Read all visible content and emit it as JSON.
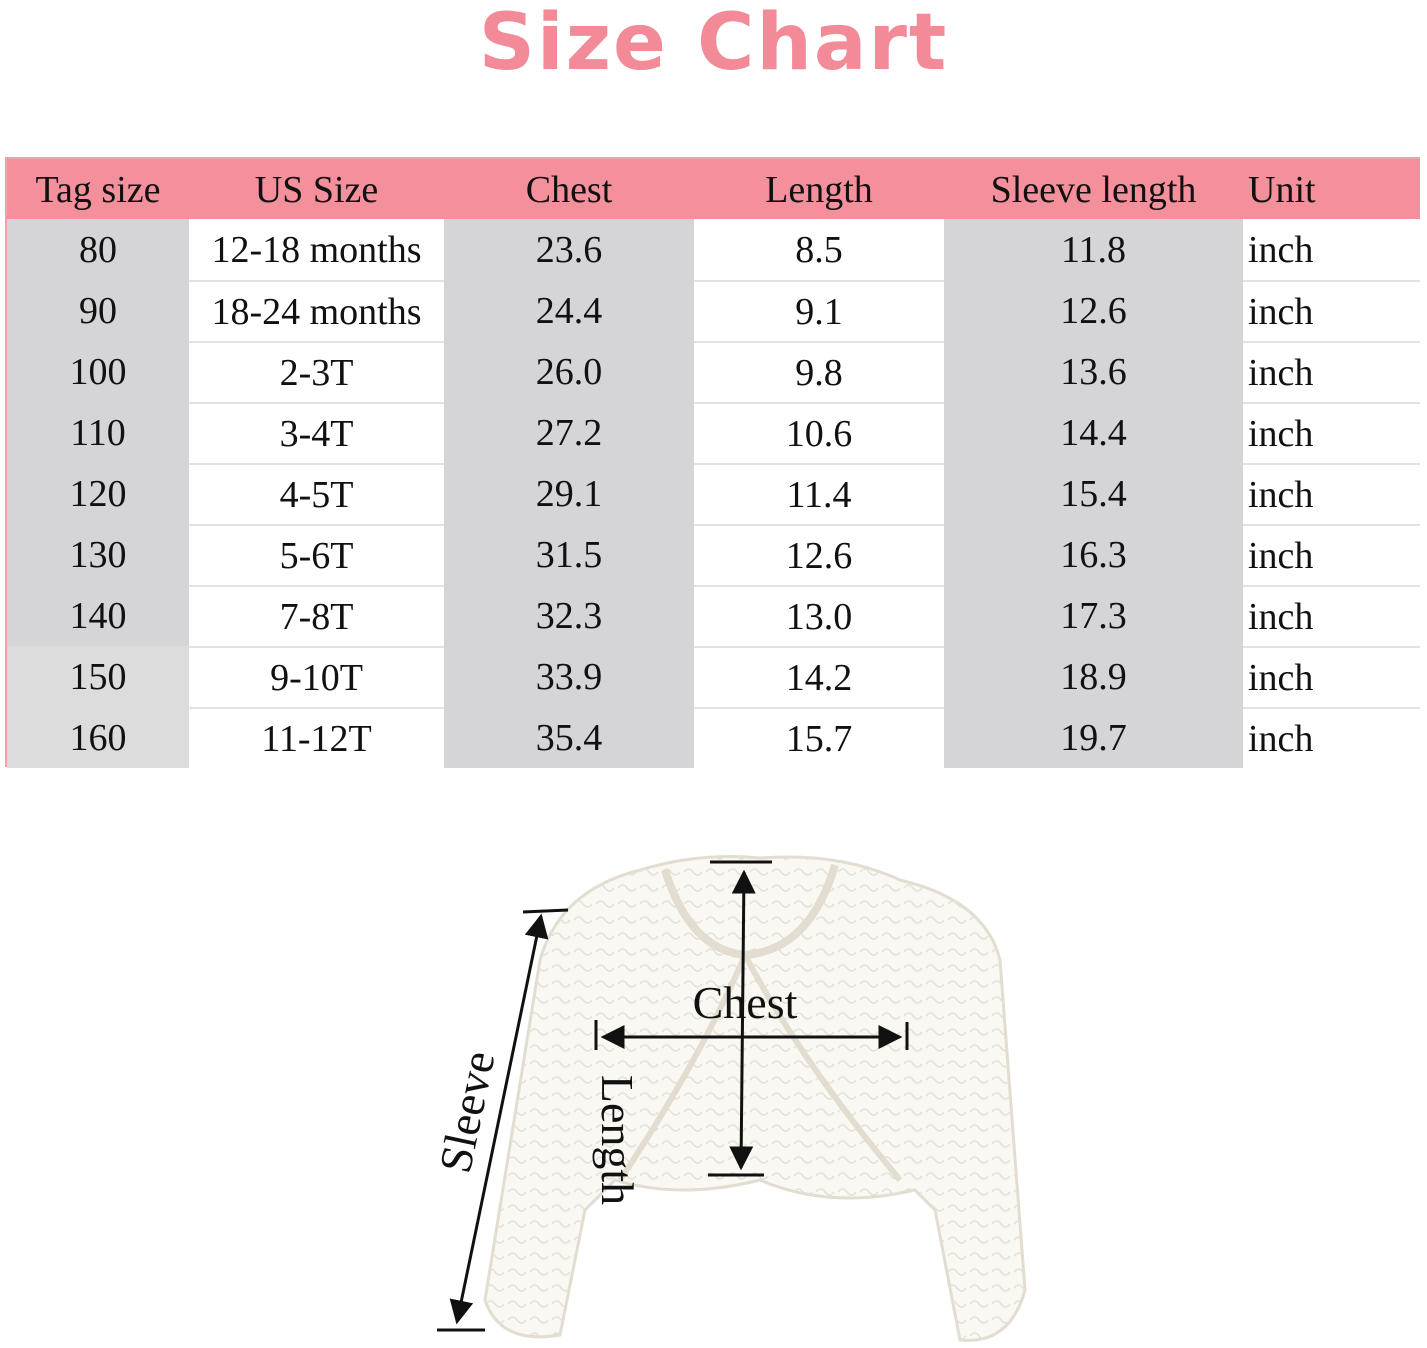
{
  "title": "Size Chart",
  "table": {
    "header": [
      "Tag size",
      "US Size",
      "Chest",
      "Length",
      "Sleeve length",
      "Unit"
    ],
    "rows": [
      [
        "80",
        "12-18 months",
        "23.6",
        "8.5",
        "11.8",
        "inch"
      ],
      [
        "90",
        "18-24 months",
        "24.4",
        "9.1",
        "12.6",
        "inch"
      ],
      [
        "100",
        "2-3T",
        "26.0",
        "9.8",
        "13.6",
        "inch"
      ],
      [
        "110",
        "3-4T",
        "27.2",
        "10.6",
        "14.4",
        "inch"
      ],
      [
        "120",
        "4-5T",
        "29.1",
        "11.4",
        "15.4",
        "inch"
      ],
      [
        "130",
        "5-6T",
        "31.5",
        "12.6",
        "16.3",
        "inch"
      ],
      [
        "140",
        "7-8T",
        "32.3",
        "13.0",
        "17.3",
        "inch"
      ],
      [
        "150",
        "9-10T",
        "33.9",
        "14.2",
        "18.9",
        "inch"
      ],
      [
        "160",
        "11-12T",
        "35.4",
        "15.7",
        "19.7",
        "inch"
      ]
    ]
  },
  "diagram": {
    "chest": "Chest",
    "length": "Length",
    "sleeve": "Sleeve"
  }
}
